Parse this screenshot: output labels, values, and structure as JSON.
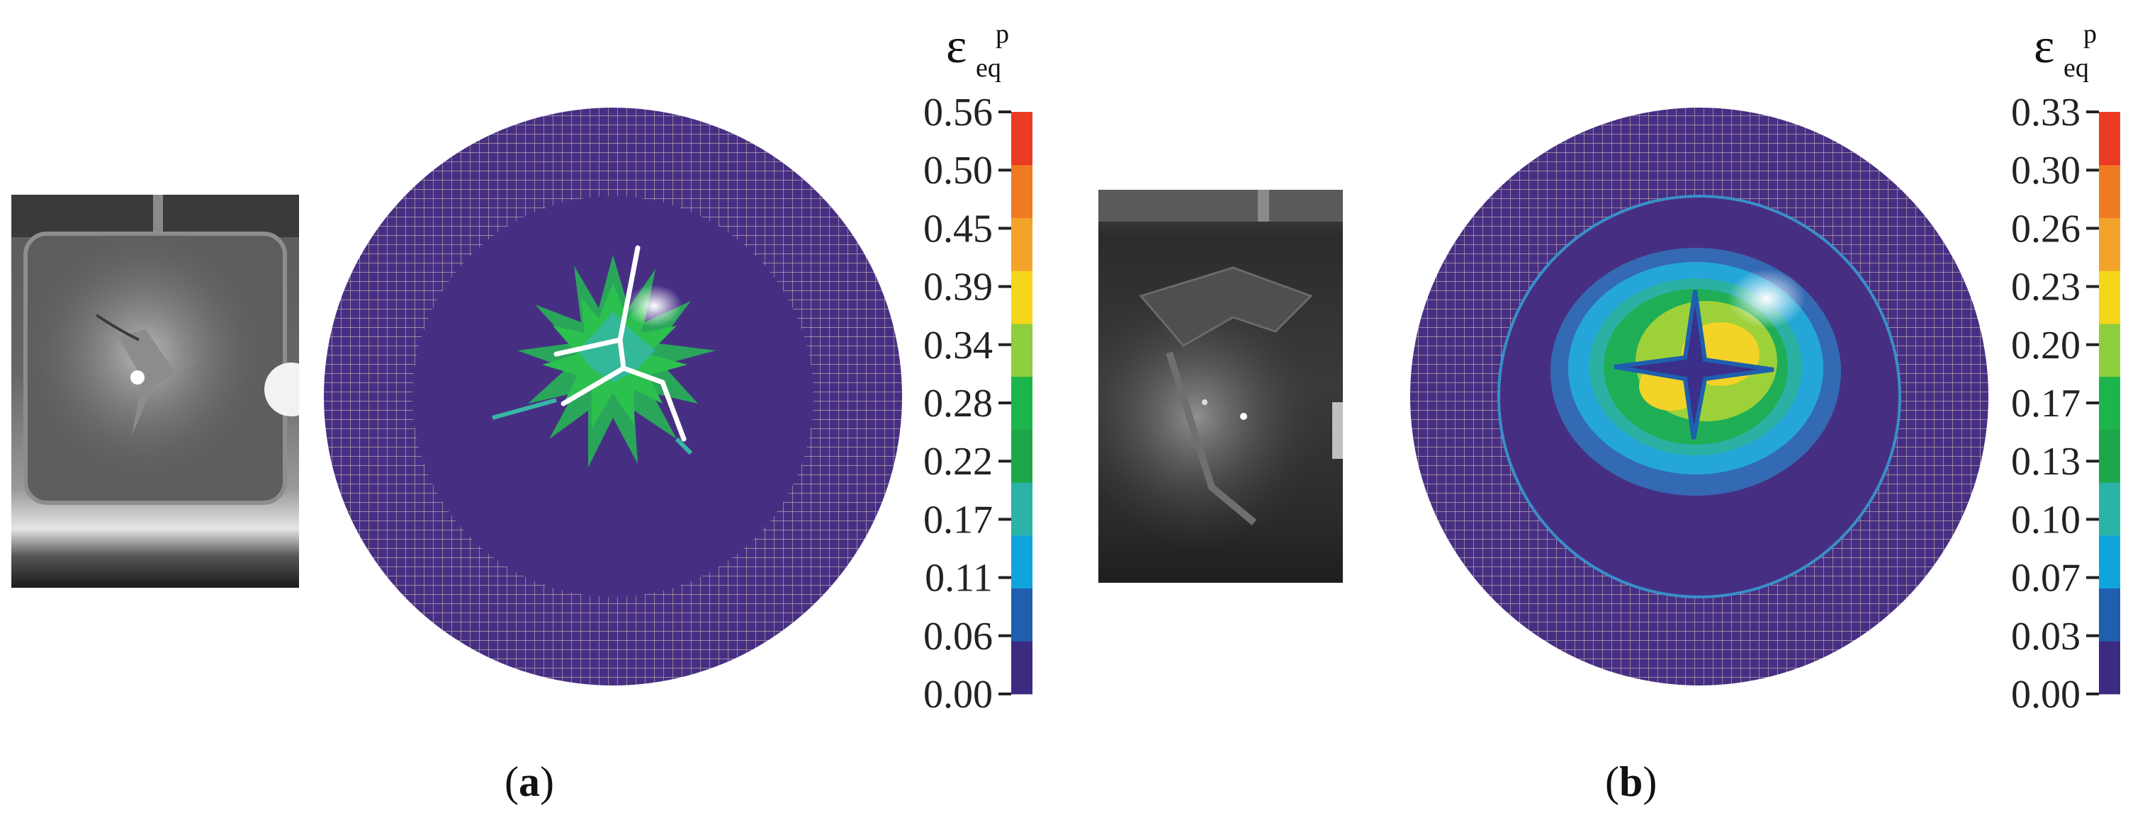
{
  "panels": [
    {
      "id": "a",
      "caption_letter": "a",
      "colorbar": {
        "symbol": "ε",
        "subscript": "eq",
        "superscript": "p",
        "ticks": [
          "0.00",
          "0.06",
          "0.11",
          "0.17",
          "0.22",
          "0.28",
          "0.34",
          "0.39",
          "0.45",
          "0.50",
          "0.56"
        ],
        "colors": [
          "#3c2b80",
          "#1f5fae",
          "#10a4dc",
          "#2bb3a8",
          "#1ca84a",
          "#1cb54b",
          "#8fce3c",
          "#f6d61a",
          "#f3a32a",
          "#f07a22",
          "#ec3b24"
        ]
      }
    },
    {
      "id": "b",
      "caption_letter": "b",
      "colorbar": {
        "symbol": "ε",
        "subscript": "eq",
        "superscript": "p",
        "ticks": [
          "0.00",
          "0.03",
          "0.07",
          "0.10",
          "0.13",
          "0.17",
          "0.20",
          "0.23",
          "0.26",
          "0.30",
          "0.33"
        ],
        "colors": [
          "#3c2b80",
          "#1f5fae",
          "#10a4dc",
          "#2bb3a8",
          "#1ca84a",
          "#1cb54b",
          "#8fce3c",
          "#f6d61a",
          "#f3a32a",
          "#f07a22",
          "#ec3b24"
        ]
      }
    }
  ],
  "theme": {
    "disc_fill": "#462f83",
    "mesh_line": "#b9a3a8"
  }
}
